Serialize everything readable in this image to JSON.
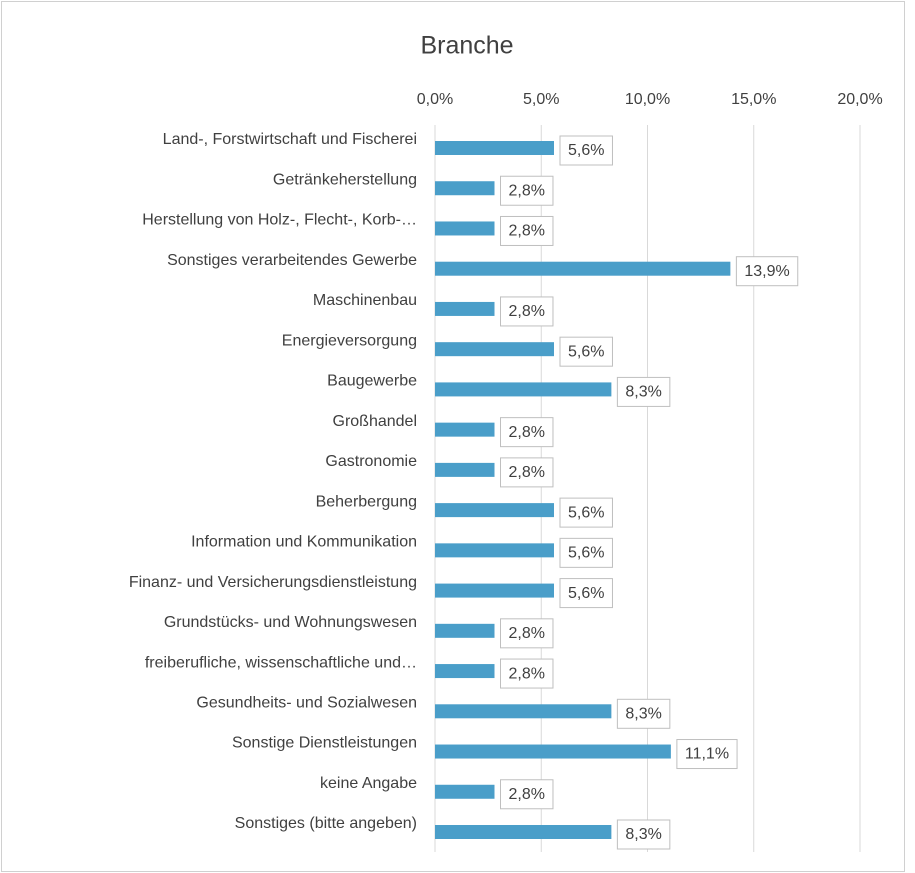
{
  "chart_data": {
    "type": "bar",
    "orientation": "horizontal",
    "title": "Branche",
    "categories": [
      "Land-, Forstwirtschaft und Fischerei",
      "Getränkeherstellung",
      "Herstellung von Holz-, Flecht-, Korb-…",
      "Sonstiges verarbeitendes Gewerbe",
      "Maschinenbau",
      "Energieversorgung",
      "Baugewerbe",
      "Großhandel",
      "Gastronomie",
      "Beherbergung",
      "Information und Kommunikation",
      "Finanz- und Versicherungsdienstleistung",
      "Grundstücks- und Wohnungswesen",
      "freiberufliche, wissenschaftliche und…",
      "Gesundheits- und Sozialwesen",
      "Sonstige Dienstleistungen",
      "keine Angabe",
      "Sonstiges (bitte angeben)"
    ],
    "values": [
      5.6,
      2.8,
      2.8,
      13.9,
      2.8,
      5.6,
      8.3,
      2.8,
      2.8,
      5.6,
      5.6,
      5.6,
      2.8,
      2.8,
      8.3,
      11.1,
      2.8,
      8.3
    ],
    "value_labels": [
      "5,6%",
      "2,8%",
      "2,8%",
      "13,9%",
      "2,8%",
      "5,6%",
      "8,3%",
      "2,8%",
      "2,8%",
      "5,6%",
      "5,6%",
      "5,6%",
      "2,8%",
      "2,8%",
      "8,3%",
      "11,1%",
      "2,8%",
      "8,3%"
    ],
    "color": "#4a9ec9",
    "xlim": [
      0,
      20
    ],
    "xticks": [
      {
        "value": 0,
        "label": "0,0%"
      },
      {
        "value": 5,
        "label": "5,0%"
      },
      {
        "value": 10,
        "label": "10,0%"
      },
      {
        "value": 15,
        "label": "15,0%"
      },
      {
        "value": 20,
        "label": "20,0%"
      }
    ],
    "grid": true
  }
}
